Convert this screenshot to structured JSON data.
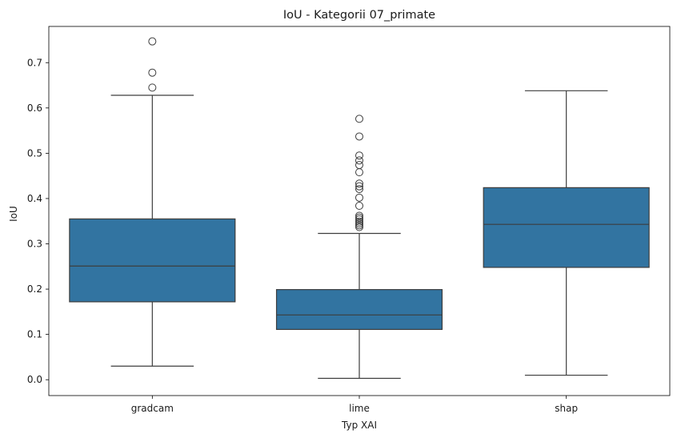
{
  "chart_data": {
    "type": "box",
    "title": "IoU - Kategorii 07_primate",
    "xlabel": "Typ XAI",
    "ylabel": "IoU",
    "ylim": [
      -0.035,
      0.78
    ],
    "yticks": [
      "0.0",
      "0.1",
      "0.2",
      "0.3",
      "0.4",
      "0.5",
      "0.6",
      "0.7"
    ],
    "grid": false,
    "box_color": "#3274a1",
    "line_color": "#3d3d3d",
    "categories": [
      "gradcam",
      "lime",
      "shap"
    ],
    "boxes": [
      {
        "category": "gradcam",
        "whisker_low": 0.03,
        "q1": 0.172,
        "median": 0.251,
        "q3": 0.355,
        "whisker_high": 0.628,
        "outliers": [
          0.645,
          0.678,
          0.747
        ]
      },
      {
        "category": "lime",
        "whisker_low": 0.003,
        "q1": 0.111,
        "median": 0.143,
        "q3": 0.199,
        "whisker_high": 0.323,
        "outliers": [
          0.337,
          0.341,
          0.345,
          0.349,
          0.354,
          0.358,
          0.362,
          0.384,
          0.402,
          0.421,
          0.427,
          0.433,
          0.458,
          0.474,
          0.484,
          0.495,
          0.537,
          0.576
        ]
      },
      {
        "category": "shap",
        "whisker_low": 0.01,
        "q1": 0.248,
        "median": 0.343,
        "q3": 0.424,
        "whisker_high": 0.638,
        "outliers": []
      }
    ]
  }
}
